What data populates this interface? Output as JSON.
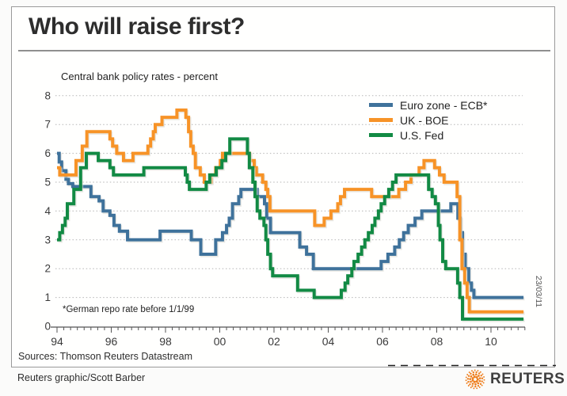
{
  "frame": {
    "title": "Who will raise first?",
    "footnote": "*German repo rate before 1/1/99",
    "date_label": "23/03/11",
    "sources": "Sources: Thomson Reuters Datastream",
    "credit": "Reuters graphic/Scott Barber",
    "brand": "REUTERS"
  },
  "chart_data": {
    "type": "line",
    "title": "Central bank policy rates - percent",
    "xlabel": "",
    "ylabel": "percent",
    "x_range": [
      1994,
      2011.3
    ],
    "ylim": [
      0,
      8
    ],
    "y_ticks": [
      0,
      1,
      2,
      3,
      4,
      5,
      6,
      7,
      8
    ],
    "x_tick_years": [
      1994,
      1996,
      1998,
      2000,
      2002,
      2004,
      2006,
      2008,
      2010
    ],
    "x_tick_labels": [
      "94",
      "96",
      "98",
      "00",
      "02",
      "04",
      "06",
      "08",
      "10"
    ],
    "grid": "dotted-horizontal",
    "legend_position": "top-right",
    "step": true,
    "series": [
      {
        "name": "Euro zone - ECB*",
        "color": "#3f729b",
        "points": [
          [
            1994.0,
            6.0
          ],
          [
            1994.08,
            5.7
          ],
          [
            1994.17,
            5.4
          ],
          [
            1994.33,
            5.1
          ],
          [
            1994.42,
            4.95
          ],
          [
            1994.58,
            4.85
          ],
          [
            1995.25,
            4.5
          ],
          [
            1995.55,
            4.35
          ],
          [
            1995.7,
            4.0
          ],
          [
            1995.95,
            3.85
          ],
          [
            1996.1,
            3.5
          ],
          [
            1996.3,
            3.3
          ],
          [
            1996.6,
            3.0
          ],
          [
            1997.8,
            3.3
          ],
          [
            1998.95,
            3.0
          ],
          [
            1999.3,
            2.5
          ],
          [
            1999.85,
            3.0
          ],
          [
            2000.1,
            3.25
          ],
          [
            2000.25,
            3.5
          ],
          [
            2000.35,
            3.75
          ],
          [
            2000.47,
            4.25
          ],
          [
            2000.7,
            4.5
          ],
          [
            2000.78,
            4.75
          ],
          [
            2001.38,
            4.5
          ],
          [
            2001.65,
            4.25
          ],
          [
            2001.73,
            3.75
          ],
          [
            2001.87,
            3.25
          ],
          [
            2002.95,
            2.75
          ],
          [
            2003.2,
            2.5
          ],
          [
            2003.45,
            2.0
          ],
          [
            2005.95,
            2.25
          ],
          [
            2006.2,
            2.5
          ],
          [
            2006.45,
            2.75
          ],
          [
            2006.62,
            3.0
          ],
          [
            2006.78,
            3.25
          ],
          [
            2006.95,
            3.5
          ],
          [
            2007.2,
            3.75
          ],
          [
            2007.45,
            4.0
          ],
          [
            2008.52,
            4.25
          ],
          [
            2008.78,
            3.75
          ],
          [
            2008.87,
            3.25
          ],
          [
            2008.95,
            2.5
          ],
          [
            2009.05,
            2.0
          ],
          [
            2009.18,
            1.5
          ],
          [
            2009.28,
            1.25
          ],
          [
            2009.37,
            1.0
          ],
          [
            2011.2,
            1.0
          ]
        ]
      },
      {
        "name": "UK - BOE",
        "color": "#f79327",
        "points": [
          [
            1994.0,
            5.5
          ],
          [
            1994.1,
            5.25
          ],
          [
            1994.7,
            5.75
          ],
          [
            1994.93,
            6.25
          ],
          [
            1995.1,
            6.75
          ],
          [
            1995.95,
            6.5
          ],
          [
            1996.05,
            6.25
          ],
          [
            1996.2,
            6.0
          ],
          [
            1996.45,
            5.75
          ],
          [
            1996.8,
            6.0
          ],
          [
            1997.35,
            6.25
          ],
          [
            1997.45,
            6.5
          ],
          [
            1997.55,
            6.75
          ],
          [
            1997.62,
            7.0
          ],
          [
            1997.87,
            7.25
          ],
          [
            1998.42,
            7.5
          ],
          [
            1998.75,
            7.25
          ],
          [
            1998.85,
            6.75
          ],
          [
            1998.93,
            6.25
          ],
          [
            1999.02,
            6.0
          ],
          [
            1999.1,
            5.5
          ],
          [
            1999.28,
            5.25
          ],
          [
            1999.43,
            5.0
          ],
          [
            1999.68,
            5.25
          ],
          [
            1999.85,
            5.5
          ],
          [
            2000.02,
            5.75
          ],
          [
            2000.1,
            6.0
          ],
          [
            2001.1,
            5.75
          ],
          [
            2001.27,
            5.5
          ],
          [
            2001.35,
            5.25
          ],
          [
            2001.58,
            5.0
          ],
          [
            2001.7,
            4.75
          ],
          [
            2001.77,
            4.5
          ],
          [
            2001.85,
            4.0
          ],
          [
            2003.5,
            3.5
          ],
          [
            2003.85,
            3.75
          ],
          [
            2004.1,
            4.0
          ],
          [
            2004.35,
            4.25
          ],
          [
            2004.45,
            4.5
          ],
          [
            2004.6,
            4.75
          ],
          [
            2005.6,
            4.5
          ],
          [
            2006.6,
            4.75
          ],
          [
            2006.85,
            5.0
          ],
          [
            2007.05,
            5.25
          ],
          [
            2007.35,
            5.5
          ],
          [
            2007.53,
            5.75
          ],
          [
            2007.92,
            5.5
          ],
          [
            2008.1,
            5.25
          ],
          [
            2008.27,
            5.0
          ],
          [
            2008.75,
            4.5
          ],
          [
            2008.85,
            3.0
          ],
          [
            2008.93,
            2.0
          ],
          [
            2009.03,
            1.5
          ],
          [
            2009.12,
            1.0
          ],
          [
            2009.2,
            0.5
          ],
          [
            2011.2,
            0.5
          ]
        ]
      },
      {
        "name": "U.S. Fed",
        "color": "#128a44",
        "points": [
          [
            1994.0,
            3.0
          ],
          [
            1994.1,
            3.25
          ],
          [
            1994.2,
            3.5
          ],
          [
            1994.3,
            3.75
          ],
          [
            1994.38,
            4.25
          ],
          [
            1994.62,
            4.75
          ],
          [
            1994.87,
            5.5
          ],
          [
            1995.08,
            6.0
          ],
          [
            1995.52,
            5.75
          ],
          [
            1995.95,
            5.5
          ],
          [
            1996.08,
            5.25
          ],
          [
            1997.2,
            5.5
          ],
          [
            1998.73,
            5.25
          ],
          [
            1998.8,
            5.0
          ],
          [
            1998.88,
            4.75
          ],
          [
            1999.5,
            5.0
          ],
          [
            1999.63,
            5.25
          ],
          [
            1999.87,
            5.5
          ],
          [
            2000.08,
            5.75
          ],
          [
            2000.22,
            6.0
          ],
          [
            2000.37,
            6.5
          ],
          [
            2001.02,
            6.0
          ],
          [
            2001.09,
            5.5
          ],
          [
            2001.22,
            5.0
          ],
          [
            2001.3,
            4.5
          ],
          [
            2001.38,
            4.0
          ],
          [
            2001.48,
            3.75
          ],
          [
            2001.63,
            3.5
          ],
          [
            2001.7,
            3.0
          ],
          [
            2001.77,
            2.5
          ],
          [
            2001.87,
            2.0
          ],
          [
            2001.95,
            1.75
          ],
          [
            2002.87,
            1.25
          ],
          [
            2003.48,
            1.0
          ],
          [
            2004.48,
            1.25
          ],
          [
            2004.62,
            1.5
          ],
          [
            2004.72,
            1.75
          ],
          [
            2004.87,
            2.0
          ],
          [
            2004.95,
            2.25
          ],
          [
            2005.1,
            2.5
          ],
          [
            2005.23,
            2.75
          ],
          [
            2005.35,
            3.0
          ],
          [
            2005.48,
            3.25
          ],
          [
            2005.62,
            3.5
          ],
          [
            2005.72,
            3.75
          ],
          [
            2005.85,
            4.0
          ],
          [
            2005.95,
            4.25
          ],
          [
            2006.08,
            4.5
          ],
          [
            2006.23,
            4.75
          ],
          [
            2006.37,
            5.0
          ],
          [
            2006.5,
            5.25
          ],
          [
            2007.7,
            4.75
          ],
          [
            2007.83,
            4.5
          ],
          [
            2007.95,
            4.25
          ],
          [
            2008.06,
            3.5
          ],
          [
            2008.12,
            3.0
          ],
          [
            2008.22,
            2.25
          ],
          [
            2008.33,
            2.0
          ],
          [
            2008.77,
            1.5
          ],
          [
            2008.85,
            1.0
          ],
          [
            2008.95,
            0.25
          ],
          [
            2011.2,
            0.25
          ]
        ]
      }
    ]
  },
  "logo": {
    "dot_color": "#ee7f1f"
  }
}
